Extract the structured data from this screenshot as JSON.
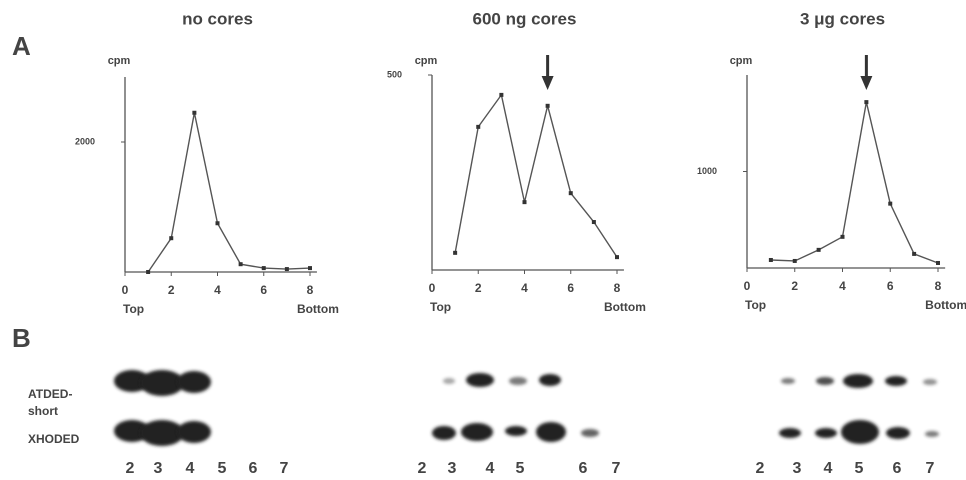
{
  "panel_a_label": "A",
  "panel_b_label": "B",
  "chart_data": [
    {
      "type": "line",
      "title": "no cores",
      "y_label": "cpm",
      "x_start_label": "Top",
      "x_end_label": "Bottom",
      "x": [
        1,
        2,
        3,
        4,
        5,
        6,
        7,
        8
      ],
      "values": [
        0,
        520,
        2450,
        750,
        120,
        60,
        45,
        60
      ],
      "color": "#555555",
      "xlim": [
        0,
        8.3
      ],
      "ylim": [
        0,
        3000
      ],
      "xticks": [
        0,
        2,
        4,
        6,
        8
      ],
      "yticks": [
        2000
      ]
    },
    {
      "type": "line",
      "title": "600 ng cores",
      "y_label": "cpm",
      "x_start_label": "Top",
      "x_end_label": "Bottom",
      "x": [
        1,
        2,
        3,
        4,
        5,
        6,
        7,
        8
      ],
      "values": [
        44,
        367,
        449,
        174,
        421,
        197,
        123,
        33
      ],
      "color": "#555555",
      "xlim": [
        0,
        8.3
      ],
      "ylim": [
        0,
        500
      ],
      "xticks": [
        0,
        2,
        4,
        6,
        8
      ],
      "yticks": [
        500
      ],
      "arrow_x": 5
    },
    {
      "type": "line",
      "title": "3 μg cores",
      "y_label": "cpm",
      "x_start_label": "Top",
      "x_end_label": "Bottom",
      "x": [
        1,
        2,
        3,
        4,
        5,
        6,
        7,
        8
      ],
      "values": [
        83,
        73,
        188,
        323,
        1719,
        667,
        146,
        52
      ],
      "color": "#555555",
      "xlim": [
        0,
        8.3
      ],
      "ylim": [
        0,
        2000
      ],
      "xticks": [
        0,
        2,
        4,
        6,
        8
      ],
      "yticks": [
        1000
      ],
      "arrow_x": 5
    }
  ],
  "gel": {
    "row_labels": [
      [
        "ATDED-",
        "short"
      ],
      "XHODED"
    ],
    "lanes": [
      [
        "2",
        "3",
        "4",
        "5",
        "6",
        "7"
      ],
      [
        "2",
        "3",
        "4",
        "5",
        "6",
        "7"
      ],
      [
        "2",
        "3",
        "4",
        "5",
        "6",
        "7"
      ]
    ]
  }
}
